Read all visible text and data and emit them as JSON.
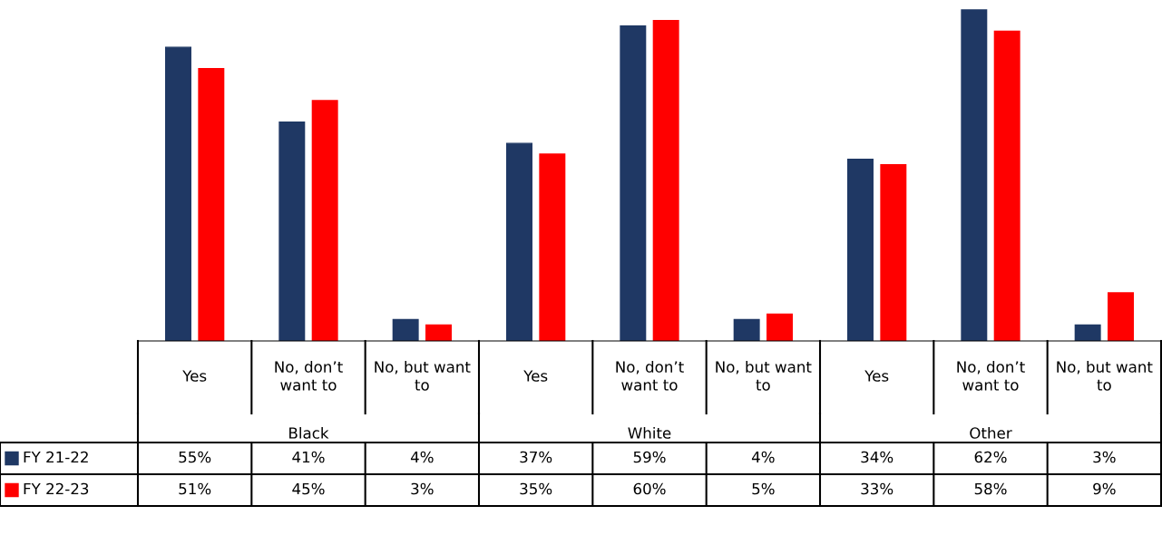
{
  "chart_data": {
    "type": "bar",
    "categories": [
      "Yes",
      "No, don’t want to",
      "No, but want to",
      "Yes",
      "No, don’t want to",
      "No, but want to",
      "Yes",
      "No, don’t want to",
      "No, but want to"
    ],
    "annotations": [
      "Black",
      "White",
      "Other"
    ],
    "series": [
      {
        "name": "FY 21-22",
        "color": "#1f3864",
        "values": [
          55,
          41,
          4,
          37,
          59,
          4,
          34,
          62,
          3
        ],
        "value_labels": [
          "55%",
          "41%",
          "4%",
          "37%",
          "59%",
          "4%",
          "34%",
          "62%",
          "3%"
        ]
      },
      {
        "name": "FY 22-23",
        "color": "#ff0000",
        "values": [
          51,
          45,
          3,
          35,
          60,
          5,
          33,
          58,
          9
        ],
        "value_labels": [
          "51%",
          "45%",
          "3%",
          "35%",
          "60%",
          "5%",
          "33%",
          "58%",
          "9%"
        ]
      }
    ],
    "legend": "bottom left"
  }
}
